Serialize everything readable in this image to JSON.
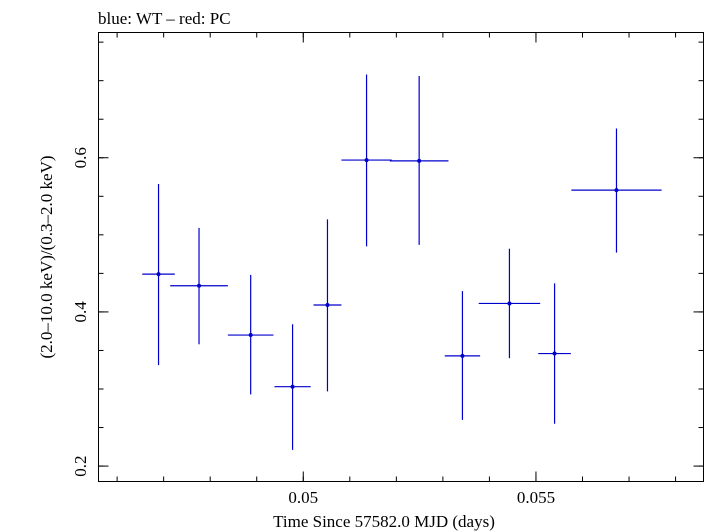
{
  "chart_data": {
    "type": "scatter",
    "title": "blue: WT – red: PC",
    "xlabel": "Time Since 57582.0 MJD (days)",
    "ylabel": "(2.0–10.0 keV)/(0.3–2.0 keV)",
    "xlim": [
      0.0456,
      0.0586
    ],
    "ylim": [
      0.18,
      0.7625
    ],
    "x_ticks": [
      {
        "value": 0.05,
        "label": "0.05"
      },
      {
        "value": 0.055,
        "label": "0.055"
      }
    ],
    "y_ticks": [
      {
        "value": 0.2,
        "label": "0.2"
      },
      {
        "value": 0.4,
        "label": "0.4"
      },
      {
        "value": 0.6,
        "label": "0.6"
      }
    ],
    "x_minor_step": 0.001,
    "y_minor_step": 0.05,
    "grid": false,
    "series": [
      {
        "name": "WT",
        "color": "#0000cc",
        "points": [
          {
            "x": 0.04689,
            "xerr": 0.00035,
            "y": 0.449,
            "y_low": 0.331,
            "y_high": 0.566
          },
          {
            "x": 0.04776,
            "xerr": 0.00062,
            "y": 0.434,
            "y_low": 0.358,
            "y_high": 0.509
          },
          {
            "x": 0.04887,
            "xerr": 0.00049,
            "y": 0.37,
            "y_low": 0.293,
            "y_high": 0.448
          },
          {
            "x": 0.04977,
            "xerr": 0.00039,
            "y": 0.303,
            "y_low": 0.221,
            "y_high": 0.384
          },
          {
            "x": 0.05052,
            "xerr": 0.0003,
            "y": 0.409,
            "y_low": 0.297,
            "y_high": 0.52
          },
          {
            "x": 0.05136,
            "xerr": 0.00054,
            "y": 0.597,
            "y_low": 0.485,
            "y_high": 0.708
          },
          {
            "x": 0.05249,
            "xerr": 0.00063,
            "y": 0.596,
            "y_low": 0.487,
            "y_high": 0.706
          },
          {
            "x": 0.05342,
            "xerr": 0.00038,
            "y": 0.343,
            "y_low": 0.26,
            "y_high": 0.427
          },
          {
            "x": 0.05443,
            "xerr": 0.00066,
            "y": 0.411,
            "y_low": 0.34,
            "y_high": 0.482
          },
          {
            "x": 0.0554,
            "xerr": 0.00035,
            "y": 0.346,
            "y_low": 0.255,
            "y_high": 0.437
          },
          {
            "x": 0.05673,
            "xerr": 0.00097,
            "y": 0.558,
            "y_low": 0.477,
            "y_high": 0.638
          }
        ]
      }
    ]
  }
}
